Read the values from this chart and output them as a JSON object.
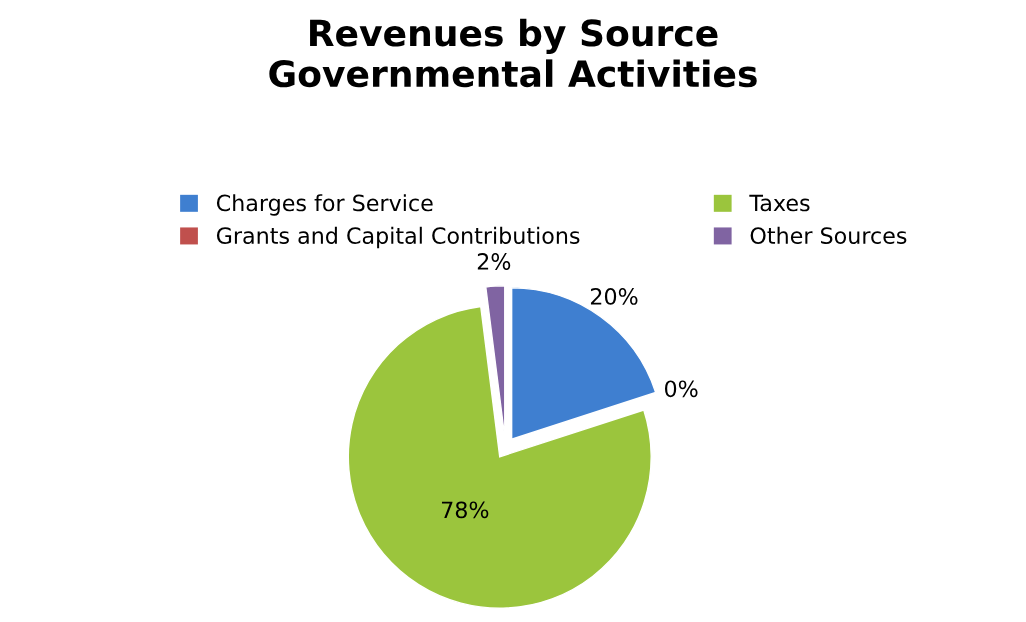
{
  "chart_data": {
    "type": "pie",
    "title": "Revenues by Source\nGovernmental Activities",
    "categories": [
      "Charges for Service",
      "Grants and Capital Contributions",
      "Taxes",
      "Other Sources"
    ],
    "values": [
      20,
      0,
      78,
      2
    ],
    "colors": [
      "#3f7fd0",
      "#c0504d",
      "#9bc53d",
      "#8064a2"
    ],
    "value_labels": [
      "20%",
      "0%",
      "78%",
      "2%"
    ],
    "legend": "top"
  }
}
